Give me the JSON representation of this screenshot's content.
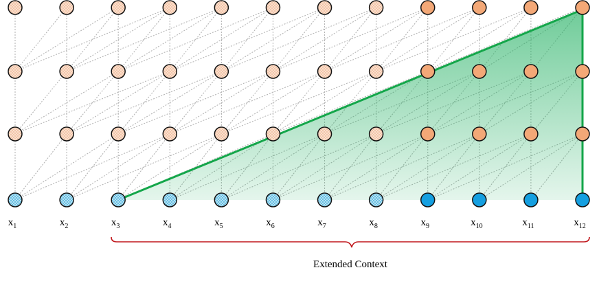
{
  "x_labels": [
    {
      "main": "x",
      "sub": "1"
    },
    {
      "main": "x",
      "sub": "2"
    },
    {
      "main": "x",
      "sub": "3"
    },
    {
      "main": "x",
      "sub": "4"
    },
    {
      "main": "x",
      "sub": "5"
    },
    {
      "main": "x",
      "sub": "6"
    },
    {
      "main": "x",
      "sub": "7"
    },
    {
      "main": "x",
      "sub": "8"
    },
    {
      "main": "x",
      "sub": "9"
    },
    {
      "main": "x",
      "sub": "10"
    },
    {
      "main": "x",
      "sub": "11"
    },
    {
      "main": "x",
      "sub": "12"
    }
  ],
  "caption": "Extended Context"
}
